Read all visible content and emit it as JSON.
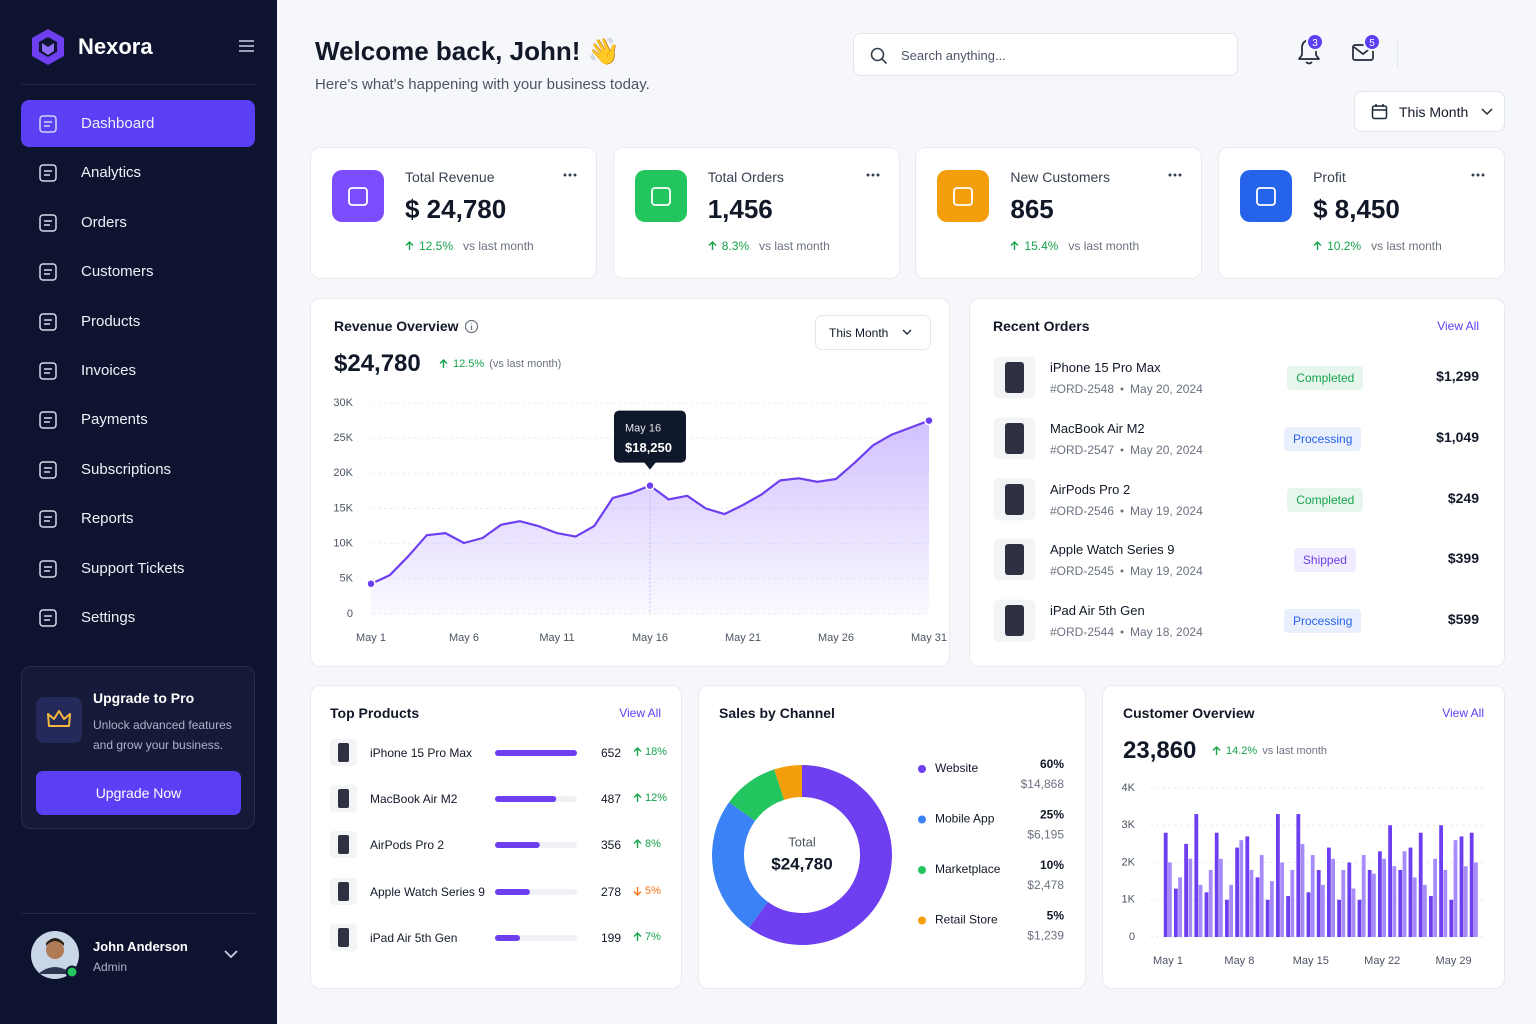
{
  "sidebar": {
    "brand": "Nexora",
    "nav": [
      {
        "label": "Dashboard",
        "active": true
      },
      {
        "label": "Analytics"
      },
      {
        "label": "Orders"
      },
      {
        "label": "Customers"
      },
      {
        "label": "Products"
      },
      {
        "label": "Invoices"
      },
      {
        "label": "Payments"
      },
      {
        "label": "Subscriptions"
      },
      {
        "label": "Reports"
      },
      {
        "label": "Support Tickets"
      },
      {
        "label": "Settings"
      }
    ],
    "upgrade": {
      "title": "Upgrade to Pro",
      "text": "Unlock advanced features and grow your business.",
      "button": "Upgrade Now"
    },
    "user": {
      "name": "John Anderson",
      "role": "Admin"
    }
  },
  "header": {
    "title": "Welcome back, John! 👋",
    "subtitle": "Here's what's happening with your business today.",
    "search_placeholder": "Search anything...",
    "notifications": 3,
    "messages": 5,
    "period": "This Month"
  },
  "stats": [
    {
      "label": "Total Revenue",
      "value": "$ 24,780",
      "change": "12.5%",
      "note": "vs last month",
      "color": "#7c4dff"
    },
    {
      "label": "Total Orders",
      "value": "1,456",
      "change": "8.3%",
      "note": "vs last month",
      "color": "#22c55e"
    },
    {
      "label": "New Customers",
      "value": "865",
      "change": "15.4%",
      "note": "vs last month",
      "color": "#f59e0b"
    },
    {
      "label": "Profit",
      "value": "$ 8,450",
      "change": "10.2%",
      "note": "vs last month",
      "color": "#2563eb"
    }
  ],
  "revenue": {
    "title": "Revenue Overview",
    "period": "This Month",
    "total": "$24,780",
    "change": "12.5%",
    "note": "(vs last month)",
    "chart": {
      "type": "line",
      "categories": [
        "May 1",
        null,
        null,
        null,
        null,
        "May 6",
        null,
        null,
        null,
        null,
        "May 11",
        null,
        null,
        null,
        null,
        "May 16",
        null,
        null,
        null,
        null,
        "May 21",
        null,
        null,
        null,
        null,
        "May 26",
        null,
        null,
        null,
        null,
        "May 31"
      ],
      "values": [
        4300,
        5500,
        8200,
        11200,
        11500,
        10100,
        10800,
        12700,
        13200,
        12500,
        11500,
        11000,
        12500,
        16500,
        17200,
        18250,
        16300,
        16800,
        15000,
        14200,
        15500,
        17000,
        19000,
        19300,
        18800,
        19200,
        21500,
        24000,
        25500,
        26500,
        27500
      ],
      "color": "#6d3ff0",
      "ylim": [
        0,
        30000
      ],
      "yticks": [
        0,
        {
          "value": 5000,
          "label": "5K"
        },
        {
          "value": 10000,
          "label": "10K"
        },
        {
          "value": 15000,
          "label": "15K"
        },
        {
          "value": 20000,
          "label": "20K"
        },
        {
          "value": 25000,
          "label": "25K"
        },
        {
          "value": 30000,
          "label": "30K"
        }
      ],
      "grid": true,
      "tooltip": {
        "x": "May 16",
        "value": "$18,250"
      }
    }
  },
  "recent_orders": {
    "title": "Recent Orders",
    "link": "View All",
    "orders": [
      {
        "product": "iPhone 15 Pro Max",
        "id": "#ORD-2548",
        "date": "May 20, 2024",
        "status": "Completed",
        "status_color": "#16a34a",
        "amount": "$1,299"
      },
      {
        "product": "MacBook Air M2",
        "id": "#ORD-2547",
        "date": "May 20, 2024",
        "status": "Processing",
        "status_color": "#2563eb",
        "amount": "$1,049"
      },
      {
        "product": "AirPods Pro 2",
        "id": "#ORD-2546",
        "date": "May 19, 2024",
        "status": "Completed",
        "status_color": "#16a34a",
        "amount": "$249"
      },
      {
        "product": "Apple Watch Series 9",
        "id": "#ORD-2545",
        "date": "May 19, 2024",
        "status": "Shipped",
        "status_color": "#6d3ff0",
        "amount": "$399"
      },
      {
        "product": "iPad Air 5th Gen",
        "id": "#ORD-2544",
        "date": "May 18, 2024",
        "status": "Processing",
        "status_color": "#2563eb",
        "amount": "$599"
      }
    ]
  },
  "top_products": {
    "title": "Top Products",
    "link": "View All",
    "products": [
      {
        "name": "iPhone 15 Pro Max",
        "units": 652,
        "change": "18%",
        "trend": "up"
      },
      {
        "name": "MacBook Air M2",
        "units": 487,
        "change": "12%",
        "trend": "up"
      },
      {
        "name": "AirPods Pro 2",
        "units": 356,
        "change": "8%",
        "trend": "up"
      },
      {
        "name": "Apple Watch Series 9",
        "units": 278,
        "change": "5%",
        "trend": "down"
      },
      {
        "name": "iPad Air 5th Gen",
        "units": 199,
        "change": "7%",
        "trend": "up"
      }
    ]
  },
  "sales_by_channel": {
    "title": "Sales by Channel",
    "chart": {
      "type": "pie",
      "donut": true,
      "center_label": "Total",
      "center_value": "$24,780",
      "categories": [
        "Website",
        "Mobile App",
        "Marketplace",
        "Retail Store"
      ],
      "values": [
        60,
        25,
        10,
        5
      ],
      "value_labels": [
        "60%",
        "25%",
        "10%",
        "5%"
      ],
      "amounts": [
        "$14,868",
        "$6,195",
        "$2,478",
        "$1,239"
      ],
      "colors": [
        "#6d3ff0",
        "#3b82f6",
        "#22c55e",
        "#f59e0b"
      ]
    }
  },
  "customer_overview": {
    "title": "Customer Overview",
    "link": "View All",
    "total": "23,860",
    "change": "14.2%",
    "note": "vs last month",
    "chart": {
      "type": "bar",
      "categories": [
        "May 1",
        null,
        null,
        null,
        null,
        null,
        null,
        "May 8",
        null,
        null,
        null,
        null,
        null,
        null,
        "May 15",
        null,
        null,
        null,
        null,
        null,
        null,
        "May 22",
        null,
        null,
        null,
        null,
        null,
        null,
        "May 29",
        null,
        null
      ],
      "series": [
        {
          "color": "#6d3ff0",
          "values": [
            2800,
            1300,
            2500,
            3300,
            1200,
            2800,
            1000,
            2400,
            2700,
            1600,
            1000,
            3300,
            1100,
            3300,
            1200,
            1800,
            2400,
            1000,
            2000,
            1000,
            1800,
            2300,
            3000,
            1800,
            2400,
            2800,
            1100,
            3000,
            1000,
            2700,
            2800
          ]
        },
        {
          "color": "#a78bfa",
          "values": [
            2000,
            1600,
            2100,
            1400,
            1800,
            2100,
            1400,
            2600,
            1800,
            2200,
            1500,
            2000,
            1800,
            2500,
            2200,
            1400,
            2100,
            1800,
            1300,
            2200,
            1700,
            2100,
            1900,
            2300,
            1600,
            1400,
            2100,
            1800,
            2600,
            1900,
            2000
          ]
        }
      ],
      "ylim": [
        0,
        4000
      ],
      "yticks": [
        0,
        {
          "value": 1000,
          "label": "1K"
        },
        {
          "value": 2000,
          "label": "2K"
        },
        {
          "value": 3000,
          "label": "3K"
        },
        {
          "value": 4000,
          "label": "4K"
        }
      ],
      "grid": true
    }
  }
}
